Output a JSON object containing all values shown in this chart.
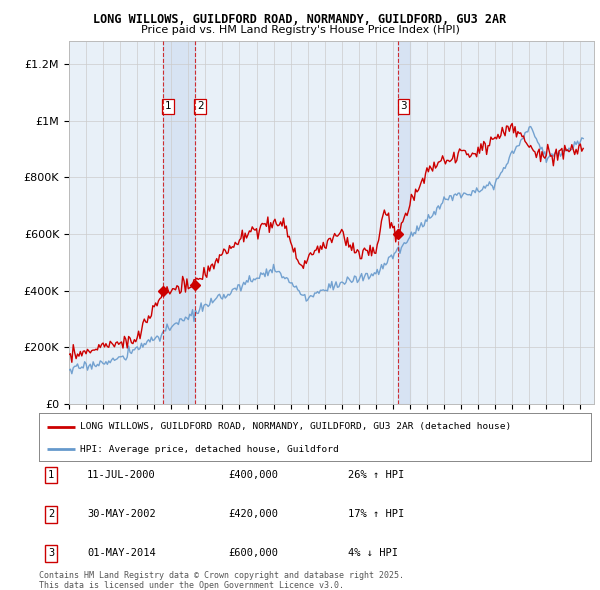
{
  "title1": "LONG WILLOWS, GUILDFORD ROAD, NORMANDY, GUILDFORD, GU3 2AR",
  "title2": "Price paid vs. HM Land Registry's House Price Index (HPI)",
  "ylabel_ticks": [
    "£0",
    "£200K",
    "£400K",
    "£600K",
    "£800K",
    "£1M",
    "£1.2M"
  ],
  "ytick_vals": [
    0,
    200000,
    400000,
    600000,
    800000,
    1000000,
    1200000
  ],
  "ylim": [
    0,
    1280000
  ],
  "xlim_start": 1995.0,
  "xlim_end": 2025.8,
  "red_color": "#cc0000",
  "blue_color": "#6699cc",
  "vline_color": "#cc0000",
  "shade_color": "#ddeeff",
  "grid_color": "#cccccc",
  "bg_color": "#f0f4f8",
  "plot_bg": "#e8f0f8",
  "legend1": "LONG WILLOWS, GUILDFORD ROAD, NORMANDY, GUILDFORD, GU3 2AR (detached house)",
  "legend2": "HPI: Average price, detached house, Guildford",
  "sale1_date": "11-JUL-2000",
  "sale1_price": "£400,000",
  "sale1_hpi": "26% ↑ HPI",
  "sale2_date": "30-MAY-2002",
  "sale2_price": "£420,000",
  "sale2_hpi": "17% ↑ HPI",
  "sale3_date": "01-MAY-2014",
  "sale3_price": "£600,000",
  "sale3_hpi": "4% ↓ HPI",
  "footnote1": "Contains HM Land Registry data © Crown copyright and database right 2025.",
  "footnote2": "This data is licensed under the Open Government Licence v3.0.",
  "sale1_x": 2000.53,
  "sale2_x": 2002.41,
  "sale3_x": 2014.33,
  "sale1_y": 400000,
  "sale2_y": 420000,
  "sale3_y": 600000
}
